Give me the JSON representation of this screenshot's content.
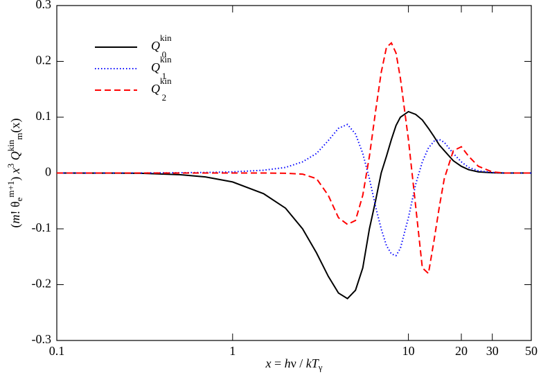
{
  "chart_data": {
    "type": "line",
    "x_label": [
      {
        "text": "x",
        "style": "italic"
      },
      {
        "text": " = ",
        "style": "normal"
      },
      {
        "text": "h",
        "style": "italic"
      },
      {
        "text": "ν / ",
        "style": "normal"
      },
      {
        "text": "kT",
        "style": "italic"
      },
      {
        "text": "γ",
        "style": "sub"
      }
    ],
    "y_label": [
      {
        "text": "(",
        "style": "normal"
      },
      {
        "text": "m",
        "style": "italic"
      },
      {
        "text": "! θ",
        "style": "normal"
      },
      {
        "text": "e",
        "style": "sub"
      },
      {
        "text": "m+1",
        "style": "sup"
      },
      {
        "text": ") ",
        "style": "normal"
      },
      {
        "text": "x",
        "style": "italic"
      },
      {
        "text": "3",
        "style": "sup"
      },
      {
        "text": " Q",
        "style": "italic"
      },
      {
        "text": "kin",
        "style": "sup"
      },
      {
        "text": "m",
        "style": "sub"
      },
      {
        "text": "(x)",
        "style": "normal"
      }
    ],
    "x_scale": "log",
    "xlim": [
      0.1,
      50
    ],
    "xticks": [
      0.1,
      1,
      10,
      20,
      30,
      50
    ],
    "ylim": [
      -0.3,
      0.3
    ],
    "yticks": [
      -0.3,
      -0.2,
      -0.1,
      0,
      0.1,
      0.2,
      0.3
    ],
    "legend": "top-left",
    "x": [
      0.1,
      0.2,
      0.3,
      0.5,
      0.7,
      1,
      1.5,
      2,
      2.5,
      3,
      3.5,
      4,
      4.5,
      5,
      5.5,
      6,
      6.5,
      7,
      7.5,
      8,
      8.5,
      9,
      10,
      11,
      12,
      13,
      14,
      15,
      16,
      18,
      20,
      22,
      25,
      30,
      35,
      40,
      50
    ],
    "series": [
      {
        "name": "Q",
        "superscript": "kin",
        "subscript": "0",
        "color": "#000000",
        "dash": "solid",
        "values": [
          0,
          -0.0002,
          -0.0005,
          -0.003,
          -0.007,
          -0.016,
          -0.037,
          -0.063,
          -0.1,
          -0.143,
          -0.185,
          -0.215,
          -0.225,
          -0.21,
          -0.17,
          -0.1,
          -0.05,
          0,
          0.03,
          0.06,
          0.085,
          0.1,
          0.11,
          0.105,
          0.095,
          0.08,
          0.065,
          0.05,
          0.04,
          0.022,
          0.012,
          0.006,
          0.002,
          0.0005,
          0,
          0,
          0
        ]
      },
      {
        "name": "Q",
        "superscript": "kin",
        "subscript": "1",
        "color": "#0000ff",
        "dash": "dotted",
        "values": [
          0,
          0,
          0,
          0.0005,
          0.001,
          0.002,
          0.005,
          0.01,
          0.02,
          0.035,
          0.058,
          0.08,
          0.087,
          0.07,
          0.035,
          -0.01,
          -0.06,
          -0.1,
          -0.13,
          -0.145,
          -0.148,
          -0.135,
          -0.08,
          -0.02,
          0.02,
          0.045,
          0.057,
          0.06,
          0.055,
          0.035,
          0.02,
          0.01,
          0.004,
          0.001,
          0,
          0,
          0
        ]
      },
      {
        "name": "Q",
        "superscript": "kin",
        "subscript": "2",
        "color": "#ff0000",
        "dash": "dashed",
        "values": [
          0,
          0,
          0,
          0,
          0,
          0,
          0,
          -0.0005,
          -0.002,
          -0.01,
          -0.04,
          -0.08,
          -0.092,
          -0.085,
          -0.04,
          0.03,
          0.11,
          0.18,
          0.225,
          0.233,
          0.215,
          0.17,
          0.06,
          -0.06,
          -0.17,
          -0.18,
          -0.12,
          -0.06,
          -0.01,
          0.04,
          0.047,
          0.03,
          0.012,
          0.002,
          0,
          0,
          0
        ]
      }
    ]
  }
}
